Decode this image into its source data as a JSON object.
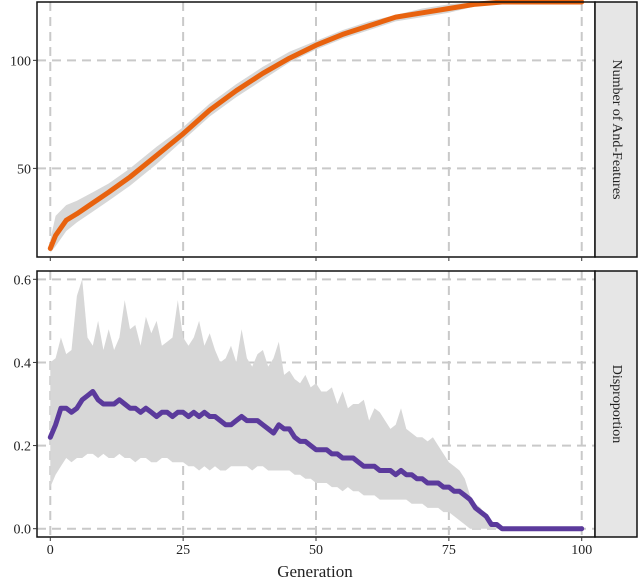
{
  "chart_data": [
    {
      "type": "line",
      "strip_label": "Number of And-Features",
      "xlim": [
        -2.5,
        102.5
      ],
      "ylim": [
        9,
        127
      ],
      "x_ticks": [
        0,
        25,
        50,
        75,
        100
      ],
      "y_ticks": [
        50,
        100
      ],
      "y_tick_labels": [
        "50",
        "100"
      ],
      "colors": {
        "line": "#E8620E",
        "band": "#D7D7D7"
      },
      "series": [
        {
          "x": [
            0,
            1,
            3,
            5,
            8,
            11,
            15,
            20,
            25,
            30,
            35,
            40,
            45,
            50,
            55,
            60,
            65,
            70,
            75,
            80,
            85,
            90,
            95,
            100
          ],
          "y": [
            13,
            19,
            26,
            29,
            34,
            39,
            46,
            56,
            66,
            77,
            86,
            94,
            101,
            107,
            112,
            116,
            120,
            122,
            124,
            126,
            127,
            127,
            127,
            127
          ],
          "lower": [
            11,
            14,
            21,
            25,
            30,
            35,
            42,
            52,
            63,
            74,
            83,
            91,
            99,
            105,
            110,
            114,
            118,
            120,
            122,
            125,
            127,
            127,
            127,
            127
          ],
          "upper": [
            17,
            28,
            33,
            35,
            39,
            43,
            50,
            60,
            69,
            80,
            89,
            97,
            104,
            109,
            114,
            118,
            121,
            124,
            126,
            127,
            127,
            127,
            127,
            127
          ]
        }
      ]
    },
    {
      "type": "line",
      "strip_label": "Disproportion",
      "xlim": [
        -2.5,
        102.5
      ],
      "ylim": [
        -0.02,
        0.62
      ],
      "x_ticks": [
        0,
        25,
        50,
        75,
        100
      ],
      "x_tick_labels": [
        "0",
        "25",
        "50",
        "75",
        "100"
      ],
      "y_ticks": [
        0.0,
        0.2,
        0.4,
        0.6
      ],
      "y_tick_labels": [
        "0.0",
        "0.2",
        "0.4",
        "0.6"
      ],
      "xlabel": "Generation",
      "colors": {
        "line": "#5B3A9C",
        "band": "#D7D7D7"
      },
      "series": [
        {
          "x": [
            0,
            1,
            2,
            3,
            4,
            5,
            6,
            7,
            8,
            9,
            10,
            11,
            12,
            13,
            14,
            15,
            16,
            17,
            18,
            19,
            20,
            21,
            22,
            23,
            24,
            25,
            26,
            27,
            28,
            29,
            30,
            31,
            32,
            33,
            34,
            35,
            36,
            37,
            38,
            39,
            40,
            41,
            42,
            43,
            44,
            45,
            46,
            47,
            48,
            49,
            50,
            51,
            52,
            53,
            54,
            55,
            56,
            57,
            58,
            59,
            60,
            61,
            62,
            63,
            64,
            65,
            66,
            67,
            68,
            69,
            70,
            71,
            72,
            73,
            74,
            75,
            76,
            77,
            78,
            79,
            80,
            81,
            82,
            83,
            84,
            85,
            86,
            87,
            88,
            89,
            90,
            91,
            92,
            93,
            94,
            95,
            96,
            97,
            98,
            99,
            100
          ],
          "y": [
            0.22,
            0.25,
            0.29,
            0.29,
            0.28,
            0.29,
            0.31,
            0.32,
            0.33,
            0.31,
            0.3,
            0.3,
            0.3,
            0.31,
            0.3,
            0.29,
            0.29,
            0.28,
            0.29,
            0.28,
            0.27,
            0.28,
            0.28,
            0.27,
            0.28,
            0.28,
            0.27,
            0.28,
            0.27,
            0.28,
            0.27,
            0.27,
            0.26,
            0.25,
            0.25,
            0.26,
            0.27,
            0.26,
            0.26,
            0.26,
            0.25,
            0.24,
            0.23,
            0.25,
            0.24,
            0.24,
            0.22,
            0.21,
            0.21,
            0.2,
            0.19,
            0.19,
            0.19,
            0.18,
            0.18,
            0.17,
            0.17,
            0.17,
            0.16,
            0.15,
            0.15,
            0.15,
            0.14,
            0.14,
            0.14,
            0.13,
            0.14,
            0.13,
            0.13,
            0.12,
            0.12,
            0.11,
            0.11,
            0.11,
            0.1,
            0.1,
            0.09,
            0.09,
            0.08,
            0.07,
            0.05,
            0.04,
            0.03,
            0.01,
            0.01,
            0.0,
            0.0,
            0.0,
            0.0,
            0.0,
            0.0,
            0.0,
            0.0,
            0.0,
            0.0,
            0.0,
            0.0,
            0.0,
            0.0,
            0.0,
            0.0
          ],
          "lower": [
            0.1,
            0.13,
            0.15,
            0.17,
            0.16,
            0.17,
            0.17,
            0.18,
            0.18,
            0.17,
            0.18,
            0.17,
            0.17,
            0.18,
            0.17,
            0.17,
            0.16,
            0.17,
            0.17,
            0.16,
            0.16,
            0.17,
            0.17,
            0.16,
            0.16,
            0.16,
            0.15,
            0.15,
            0.14,
            0.15,
            0.14,
            0.15,
            0.14,
            0.14,
            0.15,
            0.15,
            0.15,
            0.15,
            0.14,
            0.15,
            0.15,
            0.14,
            0.14,
            0.14,
            0.14,
            0.14,
            0.13,
            0.13,
            0.12,
            0.12,
            0.11,
            0.11,
            0.11,
            0.1,
            0.1,
            0.09,
            0.1,
            0.09,
            0.09,
            0.08,
            0.08,
            0.08,
            0.07,
            0.07,
            0.07,
            0.07,
            0.07,
            0.07,
            0.06,
            0.06,
            0.06,
            0.05,
            0.05,
            0.05,
            0.04,
            0.04,
            0.03,
            0.02,
            0.01,
            0.0,
            0.0,
            0.0,
            0.0,
            0.0,
            0.0,
            0.0,
            0.0,
            0.0,
            0.0,
            0.0,
            0.0,
            0.0,
            0.0,
            0.0,
            0.0,
            0.0,
            0.0,
            0.0,
            0.0,
            0.0,
            0.0
          ],
          "upper": [
            0.4,
            0.41,
            0.46,
            0.42,
            0.43,
            0.56,
            0.6,
            0.46,
            0.44,
            0.5,
            0.43,
            0.48,
            0.43,
            0.46,
            0.55,
            0.48,
            0.49,
            0.44,
            0.51,
            0.47,
            0.5,
            0.44,
            0.45,
            0.46,
            0.55,
            0.46,
            0.44,
            0.46,
            0.5,
            0.44,
            0.47,
            0.43,
            0.4,
            0.41,
            0.44,
            0.4,
            0.48,
            0.41,
            0.39,
            0.42,
            0.43,
            0.39,
            0.41,
            0.45,
            0.37,
            0.38,
            0.36,
            0.35,
            0.37,
            0.34,
            0.35,
            0.33,
            0.33,
            0.34,
            0.3,
            0.33,
            0.29,
            0.3,
            0.3,
            0.31,
            0.26,
            0.29,
            0.28,
            0.26,
            0.24,
            0.25,
            0.29,
            0.24,
            0.23,
            0.22,
            0.22,
            0.21,
            0.22,
            0.2,
            0.18,
            0.16,
            0.15,
            0.14,
            0.12,
            0.08,
            0.06,
            0.05,
            0.03,
            0.02,
            0.01,
            0.0,
            0.0,
            0.0,
            0.0,
            0.0,
            0.0,
            0.0,
            0.0,
            0.0,
            0.0,
            0.0,
            0.0,
            0.0,
            0.0,
            0.0,
            0.0
          ]
        }
      ]
    }
  ]
}
